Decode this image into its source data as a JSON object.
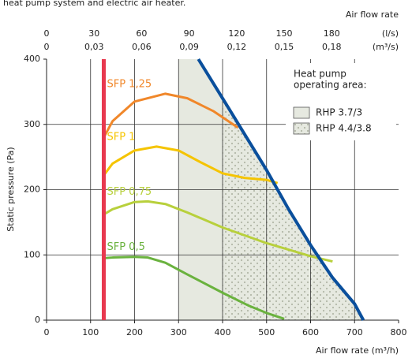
{
  "caption": "heat pump system and electric air heater.",
  "chart_data": {
    "type": "line",
    "xlabel": "Air flow rate (m³/h)",
    "ylabel": "Static pressure (Pa)",
    "top_title": "Air flow rate",
    "xlim": [
      0,
      800
    ],
    "xticks": [
      0,
      100,
      200,
      300,
      400,
      500,
      600,
      700,
      800
    ],
    "ylim": [
      0,
      400
    ],
    "yticks": [
      0,
      100,
      200,
      300,
      400
    ],
    "grid": true,
    "top_axes": [
      {
        "unit": "(l/s)",
        "lim": [
          0,
          222.22
        ],
        "ticks": [
          0,
          30,
          60,
          90,
          120,
          150,
          180
        ]
      },
      {
        "unit": "(m³/s)",
        "lim": [
          0,
          0.22222
        ],
        "ticks": [
          0,
          {
            "value": 0.03,
            "label": "0,03"
          },
          {
            "value": 0.06,
            "label": "0,06"
          },
          {
            "value": 0.09,
            "label": "0,09"
          },
          {
            "value": 0.12,
            "label": "0,12"
          },
          {
            "value": 0.15,
            "label": "0,15"
          },
          {
            "value": 0.18,
            "label": "0,18"
          }
        ]
      }
    ],
    "series": [
      {
        "name": "SFP 1,25",
        "color": "#f0872a",
        "x": [
          130,
          150,
          200,
          270,
          320,
          380,
          435
        ],
        "values": [
          280,
          305,
          335,
          347,
          340,
          320,
          295
        ]
      },
      {
        "name": "SFP 1",
        "color": "#f5c400",
        "x": [
          130,
          150,
          200,
          250,
          300,
          350,
          400,
          450,
          500,
          525
        ],
        "values": [
          222,
          240,
          260,
          266,
          260,
          242,
          225,
          218,
          215,
          210
        ]
      },
      {
        "name": "SFP 0,75",
        "color": "#b8d03c",
        "x": [
          130,
          150,
          200,
          230,
          270,
          320,
          400,
          500,
          600,
          650
        ],
        "values": [
          162,
          170,
          181,
          182,
          178,
          165,
          142,
          118,
          98,
          90
        ]
      },
      {
        "name": "SFP 0,5",
        "color": "#6ab23e",
        "x": [
          130,
          150,
          200,
          230,
          270,
          320,
          400,
          460,
          500,
          540
        ],
        "values": [
          95,
          96,
          97,
          96,
          88,
          70,
          42,
          22,
          11,
          2
        ]
      }
    ],
    "min_line": {
      "color": "#e8384f",
      "x": [
        130,
        130
      ],
      "values": [
        0,
        400
      ]
    },
    "max_line": {
      "color": "#0a4f9c",
      "x": [
        345,
        400,
        450,
        500,
        550,
        600,
        650,
        700,
        720
      ],
      "values": [
        400,
        340,
        285,
        230,
        170,
        115,
        65,
        25,
        0
      ]
    },
    "legend_title": [
      "Heat pump",
      "operating area:"
    ],
    "areas": [
      {
        "name": "RHP 3.7/3",
        "x_from": 300,
        "pattern": "solid"
      },
      {
        "name": "RHP 4.4/3.8",
        "x_from": 400,
        "pattern": "dots"
      }
    ]
  }
}
